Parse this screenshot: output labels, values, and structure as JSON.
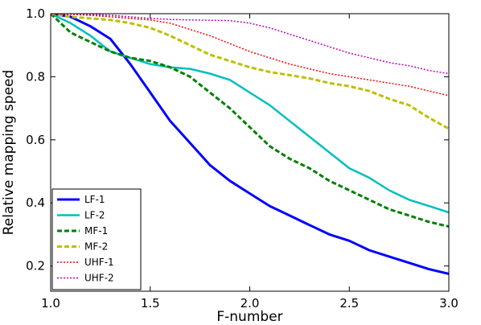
{
  "chart_data": {
    "type": "line",
    "title": "",
    "xlabel": "F-number",
    "ylabel": "Relative mapping speed",
    "xlim": [
      1.0,
      3.0
    ],
    "ylim": [
      0.12,
      1.0
    ],
    "xticks": [
      1.0,
      1.5,
      2.0,
      2.5,
      3.0
    ],
    "xtick_labels": [
      "1.0",
      "1.5",
      "2.0",
      "2.5",
      "3.0"
    ],
    "yticks": [
      0.2,
      0.4,
      0.6,
      0.8,
      1.0
    ],
    "ytick_labels": [
      "0.2",
      "0.4",
      "0.6",
      "0.8",
      "1.0"
    ],
    "grid": false,
    "legend_position": "lower-left",
    "x": [
      1.0,
      1.1,
      1.2,
      1.3,
      1.4,
      1.5,
      1.6,
      1.7,
      1.8,
      1.9,
      2.0,
      2.1,
      2.2,
      2.3,
      2.4,
      2.5,
      2.6,
      2.7,
      2.8,
      2.9,
      3.0
    ],
    "series": [
      {
        "name": "LF-1",
        "color": "#0000ff",
        "style": "solid",
        "width": 3,
        "values": [
          1.0,
          0.99,
          0.96,
          0.92,
          0.84,
          0.75,
          0.66,
          0.59,
          0.52,
          0.47,
          0.43,
          0.39,
          0.36,
          0.33,
          0.3,
          0.28,
          0.25,
          0.23,
          0.21,
          0.19,
          0.175
        ]
      },
      {
        "name": "LF-2",
        "color": "#00bfbf",
        "style": "solid",
        "width": 2.5,
        "values": [
          1.0,
          0.97,
          0.93,
          0.88,
          0.86,
          0.84,
          0.83,
          0.825,
          0.81,
          0.79,
          0.75,
          0.71,
          0.66,
          0.61,
          0.56,
          0.51,
          0.48,
          0.44,
          0.41,
          0.39,
          0.37
        ]
      },
      {
        "name": "MF-1",
        "color": "#008000",
        "style": "dashed",
        "width": 3,
        "values": [
          1.0,
          0.94,
          0.91,
          0.88,
          0.86,
          0.85,
          0.83,
          0.8,
          0.75,
          0.7,
          0.64,
          0.58,
          0.54,
          0.51,
          0.47,
          0.44,
          0.41,
          0.38,
          0.36,
          0.34,
          0.325
        ]
      },
      {
        "name": "MF-2",
        "color": "#bfbf00",
        "style": "dashed",
        "width": 3,
        "values": [
          1.0,
          0.99,
          0.985,
          0.98,
          0.97,
          0.955,
          0.93,
          0.9,
          0.87,
          0.85,
          0.83,
          0.815,
          0.805,
          0.795,
          0.78,
          0.77,
          0.755,
          0.73,
          0.71,
          0.67,
          0.635
        ]
      },
      {
        "name": "UHF-1",
        "color": "#ff0000",
        "style": "dotted",
        "width": 1.5,
        "values": [
          1.0,
          0.998,
          0.995,
          0.99,
          0.985,
          0.98,
          0.97,
          0.95,
          0.93,
          0.905,
          0.88,
          0.86,
          0.84,
          0.825,
          0.81,
          0.8,
          0.79,
          0.78,
          0.77,
          0.755,
          0.74
        ]
      },
      {
        "name": "UHF-2",
        "color": "#bf00bf",
        "style": "dotted",
        "width": 1.5,
        "values": [
          1.0,
          1.0,
          0.998,
          0.995,
          0.99,
          0.985,
          0.982,
          0.98,
          0.979,
          0.978,
          0.97,
          0.955,
          0.935,
          0.915,
          0.895,
          0.875,
          0.86,
          0.845,
          0.835,
          0.82,
          0.81
        ]
      }
    ]
  }
}
